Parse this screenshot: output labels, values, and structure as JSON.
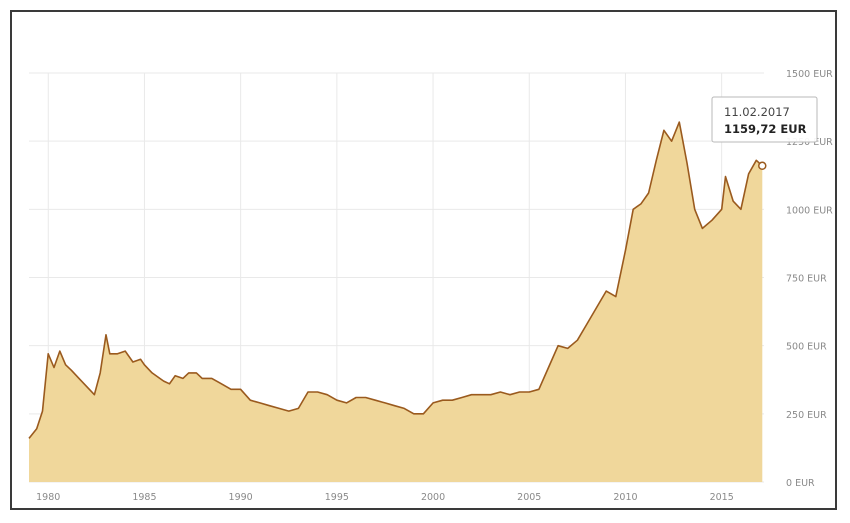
{
  "chart_data": {
    "type": "area",
    "title": "",
    "xlabel": "",
    "ylabel": "",
    "x_ticks": [
      "1980",
      "1985",
      "1990",
      "1995",
      "2000",
      "2005",
      "2010",
      "2015"
    ],
    "y_ticks": [
      "0 EUR",
      "250 EUR",
      "500 EUR",
      "750 EUR",
      "1000 EUR",
      "1250 EUR",
      "1500 EUR"
    ],
    "xlim": [
      1979,
      2017.2
    ],
    "ylim": [
      0,
      1500
    ],
    "grid": true,
    "colors": {
      "line": "#9a5a1e",
      "fill": "#f0d79b",
      "grid": "#e9e9e9"
    },
    "series": [
      {
        "points": [
          [
            1979.0,
            160
          ],
          [
            1979.4,
            195
          ],
          [
            1979.7,
            260
          ],
          [
            1980.0,
            470
          ],
          [
            1980.3,
            420
          ],
          [
            1980.6,
            480
          ],
          [
            1980.9,
            430
          ],
          [
            1981.2,
            410
          ],
          [
            1981.6,
            380
          ],
          [
            1982.0,
            350
          ],
          [
            1982.4,
            320
          ],
          [
            1982.7,
            400
          ],
          [
            1983.0,
            540
          ],
          [
            1983.2,
            470
          ],
          [
            1983.6,
            470
          ],
          [
            1984.0,
            480
          ],
          [
            1984.4,
            440
          ],
          [
            1984.8,
            450
          ],
          [
            1985.0,
            430
          ],
          [
            1985.4,
            400
          ],
          [
            1985.8,
            380
          ],
          [
            1986.0,
            370
          ],
          [
            1986.3,
            360
          ],
          [
            1986.6,
            390
          ],
          [
            1987.0,
            380
          ],
          [
            1987.3,
            400
          ],
          [
            1987.7,
            400
          ],
          [
            1988.0,
            380
          ],
          [
            1988.5,
            380
          ],
          [
            1989.0,
            360
          ],
          [
            1989.5,
            340
          ],
          [
            1990.0,
            340
          ],
          [
            1990.5,
            300
          ],
          [
            1991.0,
            290
          ],
          [
            1991.5,
            280
          ],
          [
            1992.0,
            270
          ],
          [
            1992.5,
            260
          ],
          [
            1993.0,
            270
          ],
          [
            1993.5,
            330
          ],
          [
            1994.0,
            330
          ],
          [
            1994.5,
            320
          ],
          [
            1995.0,
            300
          ],
          [
            1995.5,
            290
          ],
          [
            1996.0,
            310
          ],
          [
            1996.5,
            310
          ],
          [
            1997.0,
            300
          ],
          [
            1997.5,
            290
          ],
          [
            1998.0,
            280
          ],
          [
            1998.5,
            270
          ],
          [
            1999.0,
            250
          ],
          [
            1999.5,
            250
          ],
          [
            2000.0,
            290
          ],
          [
            2000.5,
            300
          ],
          [
            2001.0,
            300
          ],
          [
            2001.5,
            310
          ],
          [
            2002.0,
            320
          ],
          [
            2002.5,
            320
          ],
          [
            2003.0,
            320
          ],
          [
            2003.5,
            330
          ],
          [
            2004.0,
            320
          ],
          [
            2004.5,
            330
          ],
          [
            2005.0,
            330
          ],
          [
            2005.5,
            340
          ],
          [
            2006.0,
            420
          ],
          [
            2006.5,
            500
          ],
          [
            2007.0,
            490
          ],
          [
            2007.5,
            520
          ],
          [
            2008.0,
            580
          ],
          [
            2008.5,
            640
          ],
          [
            2009.0,
            700
          ],
          [
            2009.5,
            680
          ],
          [
            2010.0,
            850
          ],
          [
            2010.4,
            1000
          ],
          [
            2010.8,
            1020
          ],
          [
            2011.2,
            1060
          ],
          [
            2011.6,
            1180
          ],
          [
            2012.0,
            1290
          ],
          [
            2012.4,
            1250
          ],
          [
            2012.8,
            1320
          ],
          [
            2013.2,
            1170
          ],
          [
            2013.6,
            1000
          ],
          [
            2014.0,
            930
          ],
          [
            2014.5,
            960
          ],
          [
            2015.0,
            1000
          ],
          [
            2015.2,
            1120
          ],
          [
            2015.6,
            1030
          ],
          [
            2016.0,
            1000
          ],
          [
            2016.4,
            1130
          ],
          [
            2016.8,
            1180
          ],
          [
            2017.11,
            1159.72
          ]
        ]
      }
    ],
    "tooltip": {
      "date": "11.02.2017",
      "value": "1159,72 EUR"
    }
  }
}
